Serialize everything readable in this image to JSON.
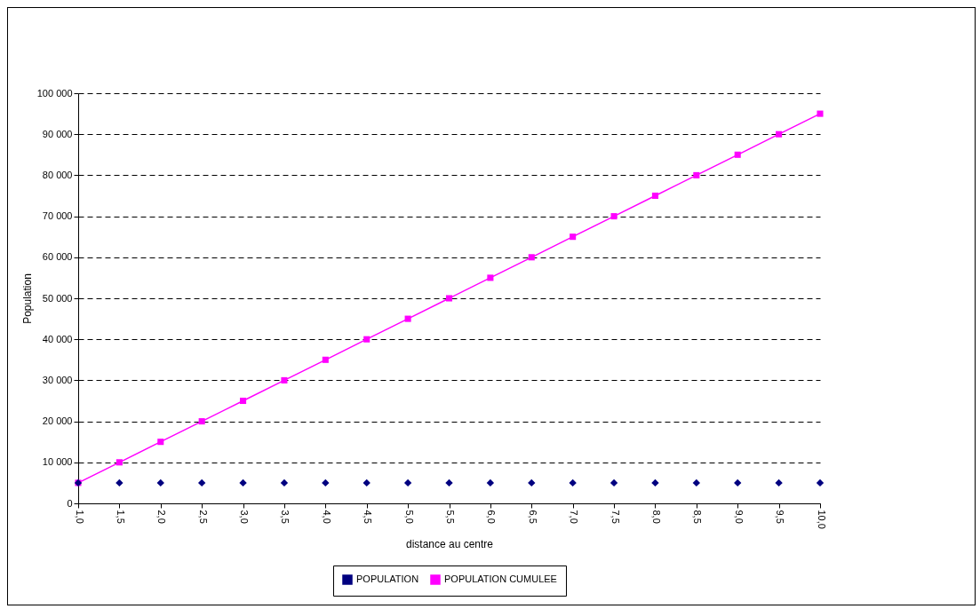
{
  "chart_data": {
    "type": "line",
    "xlabel": "distance au centre",
    "ylabel": "Population",
    "categories": [
      "1,0",
      "1,5",
      "2,0",
      "2,5",
      "3,0",
      "3,5",
      "4,0",
      "4,5",
      "5,0",
      "5,5",
      "6,0",
      "6,5",
      "7,0",
      "7,5",
      "8,0",
      "8,5",
      "9,0",
      "9,5",
      "10,0"
    ],
    "series": [
      {
        "name": "POPULATION",
        "type": "scatter",
        "marker": "diamond",
        "color": "#000080",
        "values": [
          5000,
          5000,
          5000,
          5000,
          5000,
          5000,
          5000,
          5000,
          5000,
          5000,
          5000,
          5000,
          5000,
          5000,
          5000,
          5000,
          5000,
          5000,
          5000
        ]
      },
      {
        "name": "POPULATION CUMULEE",
        "type": "line",
        "marker": "square",
        "color": "#ff00ff",
        "values": [
          5000,
          10000,
          15000,
          20000,
          25000,
          30000,
          35000,
          40000,
          45000,
          50000,
          55000,
          60000,
          65000,
          70000,
          75000,
          80000,
          85000,
          90000,
          95000
        ]
      }
    ],
    "ylim": [
      0,
      100000
    ],
    "yticks": [
      0,
      {
        "value": 10000,
        "label": "10 000"
      },
      {
        "value": 20000,
        "label": "20 000"
      },
      {
        "value": 30000,
        "label": "30 000"
      },
      {
        "value": 40000,
        "label": "40 000"
      },
      {
        "value": 50000,
        "label": "50 000"
      },
      {
        "value": 60000,
        "label": "60 000"
      },
      {
        "value": 70000,
        "label": "70 000"
      },
      {
        "value": 80000,
        "label": "80 000"
      },
      {
        "value": 90000,
        "label": "90 000"
      },
      {
        "value": 100000,
        "label": "100 000"
      }
    ],
    "grid": "y",
    "legend": "bottom"
  }
}
